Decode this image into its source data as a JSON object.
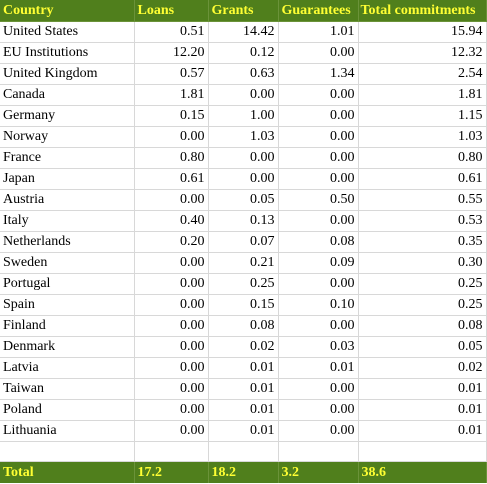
{
  "colors": {
    "header_bg": "#507f1c",
    "header_text": "#ffff33",
    "gridline": "#d8d8d8"
  },
  "table": {
    "headers": [
      "Country",
      "Loans",
      "Grants",
      "Guarantees",
      "Total commitments"
    ],
    "rows": [
      [
        "United States",
        "0.51",
        "14.42",
        "1.01",
        "15.94"
      ],
      [
        "EU Institutions",
        "12.20",
        "0.12",
        "0.00",
        "12.32"
      ],
      [
        "United Kingdom",
        "0.57",
        "0.63",
        "1.34",
        "2.54"
      ],
      [
        "Canada",
        "1.81",
        "0.00",
        "0.00",
        "1.81"
      ],
      [
        "Germany",
        "0.15",
        "1.00",
        "0.00",
        "1.15"
      ],
      [
        "Norway",
        "0.00",
        "1.03",
        "0.00",
        "1.03"
      ],
      [
        "France",
        "0.80",
        "0.00",
        "0.00",
        "0.80"
      ],
      [
        "Japan",
        "0.61",
        "0.00",
        "0.00",
        "0.61"
      ],
      [
        "Austria",
        "0.00",
        "0.05",
        "0.50",
        "0.55"
      ],
      [
        "Italy",
        "0.40",
        "0.13",
        "0.00",
        "0.53"
      ],
      [
        "Netherlands",
        "0.20",
        "0.07",
        "0.08",
        "0.35"
      ],
      [
        "Sweden",
        "0.00",
        "0.21",
        "0.09",
        "0.30"
      ],
      [
        "Portugal",
        "0.00",
        "0.25",
        "0.00",
        "0.25"
      ],
      [
        "Spain",
        "0.00",
        "0.15",
        "0.10",
        "0.25"
      ],
      [
        "Finland",
        "0.00",
        "0.08",
        "0.00",
        "0.08"
      ],
      [
        "Denmark",
        "0.00",
        "0.02",
        "0.03",
        "0.05"
      ],
      [
        "Latvia",
        "0.00",
        "0.01",
        "0.01",
        "0.02"
      ],
      [
        "Taiwan",
        "0.00",
        "0.01",
        "0.00",
        "0.01"
      ],
      [
        "Poland",
        "0.00",
        "0.01",
        "0.00",
        "0.01"
      ],
      [
        "Lithuania",
        "0.00",
        "0.01",
        "0.00",
        "0.01"
      ]
    ],
    "total": [
      "Total",
      "17.2",
      "18.2",
      "3.2",
      "38.6"
    ]
  }
}
